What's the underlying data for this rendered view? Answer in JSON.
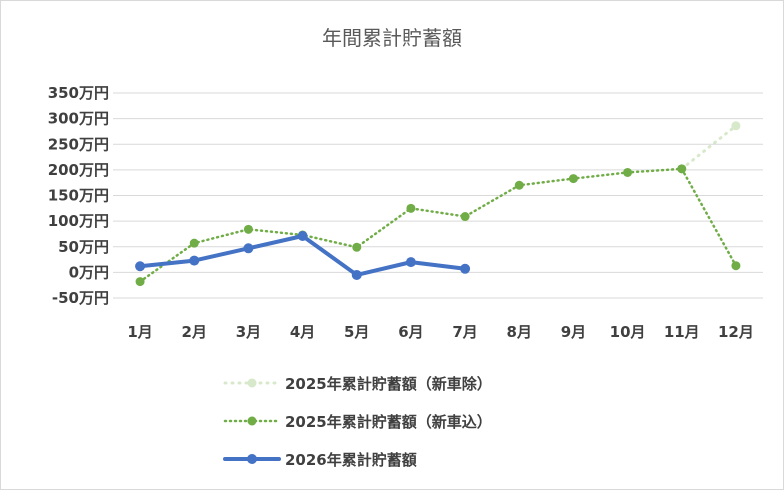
{
  "chart_data": {
    "type": "line",
    "title": "年間累計貯蓄額",
    "xlabel": "",
    "ylabel": "",
    "categories": [
      "1月",
      "2月",
      "3月",
      "4月",
      "5月",
      "6月",
      "7月",
      "8月",
      "9月",
      "10月",
      "11月",
      "12月"
    ],
    "ylim": [
      -50,
      350
    ],
    "yticks": [
      -50,
      0,
      50,
      100,
      150,
      200,
      250,
      300,
      350
    ],
    "ytick_labels": [
      "-50万円",
      "0万円",
      "50万円",
      "100万円",
      "150万円",
      "200万円",
      "250万円",
      "300万円",
      "350万円"
    ],
    "grid": true,
    "legend": "bottom",
    "series": [
      {
        "name": "2025年累計貯蓄額（新車除）",
        "values": [
          null,
          null,
          null,
          null,
          null,
          null,
          null,
          null,
          null,
          null,
          202,
          286
        ],
        "color": "#a9d08e",
        "style": "dotted-faded"
      },
      {
        "name": "2025年累計貯蓄額（新車込）",
        "values": [
          -18,
          57,
          84,
          73,
          49,
          125,
          109,
          170,
          183,
          195,
          202,
          13
        ],
        "color": "#70ad47",
        "style": "dotted"
      },
      {
        "name": "2026年累計貯蓄額",
        "values": [
          12,
          23,
          47,
          71,
          -5,
          20,
          7,
          null,
          null,
          null,
          null,
          null
        ],
        "color": "#4472c4",
        "style": "solid"
      }
    ]
  }
}
